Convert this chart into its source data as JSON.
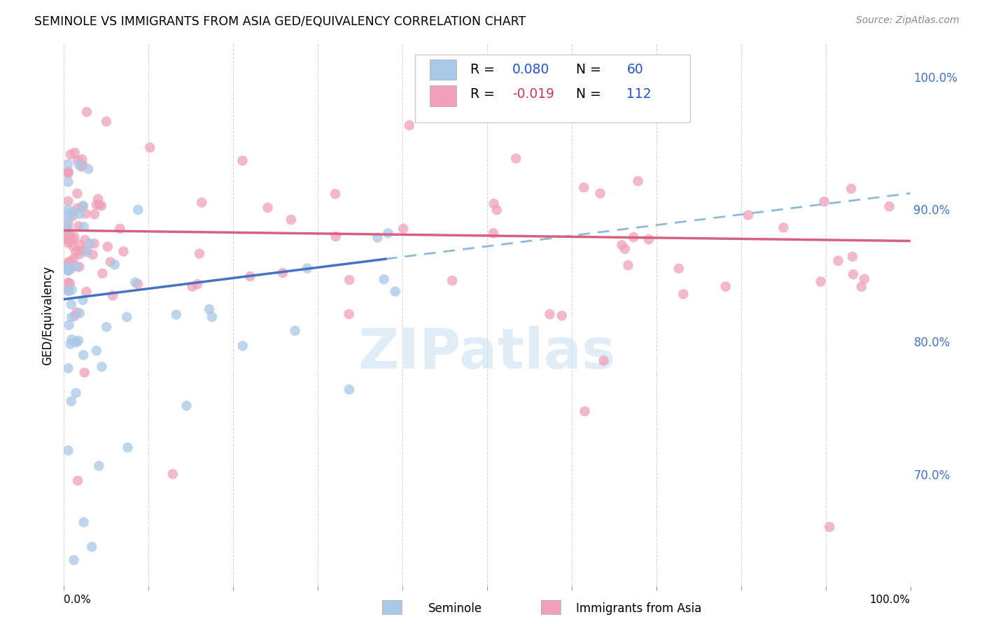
{
  "title": "SEMINOLE VS IMMIGRANTS FROM ASIA GED/EQUIVALENCY CORRELATION CHART",
  "source": "Source: ZipAtlas.com",
  "ylabel": "GED/Equivalency",
  "legend_label1": "Seminole",
  "legend_label2": "Immigrants from Asia",
  "R1": 0.08,
  "N1": 60,
  "R2": -0.019,
  "N2": 112,
  "color_blue": "#a8c8e8",
  "color_pink": "#f0a0b8",
  "trend_blue_solid": "#4472c4",
  "trend_blue_dash": "#90b8d8",
  "trend_pink": "#d95f7f",
  "xlim": [
    0.0,
    1.0
  ],
  "ylim": [
    0.615,
    1.025
  ],
  "yticks": [
    0.7,
    0.8,
    0.9,
    1.0
  ],
  "ytick_labels": [
    "70.0%",
    "80.0%",
    "90.0%",
    "100.0%"
  ],
  "xticks": [
    0.0,
    0.1,
    0.2,
    0.3,
    0.4,
    0.5,
    0.6,
    0.7,
    0.8,
    0.9,
    1.0
  ],
  "blue_trend_x_solid_start": 0.0,
  "blue_trend_x_solid_end": 0.38,
  "blue_trend_y_start": 0.832,
  "blue_trend_y_at_solid_end": 0.862,
  "blue_trend_y_end": 0.912,
  "pink_trend_y_start": 0.884,
  "pink_trend_y_end": 0.876,
  "background_color": "#ffffff",
  "grid_color": "#cccccc",
  "watermark_color": "#c8dff0",
  "right_label_color": "#4472c4",
  "scatter_size": 110
}
